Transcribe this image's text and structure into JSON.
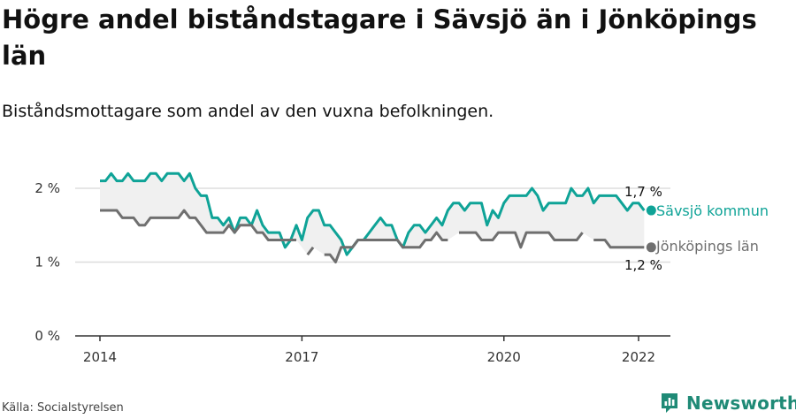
{
  "header": {
    "title": "Högre andel biståndstagare i Sävsjö än i Jönköpings län",
    "subtitle": "Biståndsmottagare som andel av den vuxna befolkningen."
  },
  "footer": {
    "source": "Källa: Socialstyrelsen",
    "brand": "Newsworthy"
  },
  "colors": {
    "savsjo": "#0fa397",
    "lan": "#6f6f6f",
    "band": "#f0f0f0",
    "grid": "#dddddd",
    "brand": "#1f8a76"
  },
  "chart_data": {
    "type": "line",
    "y_ticks": [
      "0 %",
      "1 %",
      "2 %"
    ],
    "x_ticks": [
      "2014",
      "2017",
      "2020",
      "2022"
    ],
    "ylim": [
      0,
      2.2
    ],
    "xlim": [
      2014,
      2022.08
    ],
    "grid": true,
    "x": [
      2014.0,
      2014.083,
      2014.167,
      2014.25,
      2014.333,
      2014.417,
      2014.5,
      2014.583,
      2014.667,
      2014.75,
      2014.833,
      2014.917,
      2015.0,
      2015.083,
      2015.167,
      2015.25,
      2015.333,
      2015.417,
      2015.5,
      2015.583,
      2015.667,
      2015.75,
      2015.833,
      2015.917,
      2016.0,
      2016.083,
      2016.167,
      2016.25,
      2016.333,
      2016.417,
      2016.5,
      2016.583,
      2016.667,
      2016.75,
      2016.833,
      2016.917,
      2017.0,
      2017.083,
      2017.167,
      2017.25,
      2017.333,
      2017.417,
      2017.5,
      2017.583,
      2017.667,
      2017.75,
      2017.833,
      2017.917,
      2018.0,
      2018.083,
      2018.167,
      2018.25,
      2018.333,
      2018.417,
      2018.5,
      2018.583,
      2018.667,
      2018.75,
      2018.833,
      2018.917,
      2019.0,
      2019.083,
      2019.167,
      2019.25,
      2019.333,
      2019.417,
      2019.5,
      2019.583,
      2019.667,
      2019.75,
      2019.833,
      2019.917,
      2020.0,
      2020.083,
      2020.167,
      2020.25,
      2020.333,
      2020.417,
      2020.5,
      2020.583,
      2020.667,
      2020.75,
      2020.833,
      2020.917,
      2021.0,
      2021.083,
      2021.167,
      2021.25,
      2021.333,
      2021.417,
      2021.5,
      2021.583,
      2021.667,
      2021.75,
      2021.833,
      2021.917,
      2022.0,
      2022.083
    ],
    "series": [
      {
        "name": "Sävsjö kommun",
        "end_label": "1,7 %",
        "values": [
          2.1,
          2.1,
          2.2,
          2.1,
          2.1,
          2.2,
          2.1,
          2.1,
          2.1,
          2.2,
          2.2,
          2.1,
          2.2,
          2.2,
          2.2,
          2.1,
          2.2,
          2.0,
          1.9,
          1.9,
          1.6,
          1.6,
          1.5,
          1.6,
          1.4,
          1.6,
          1.6,
          1.5,
          1.7,
          1.5,
          1.4,
          1.4,
          1.4,
          1.2,
          1.3,
          1.5,
          1.3,
          1.6,
          1.7,
          1.7,
          1.5,
          1.5,
          1.4,
          1.3,
          1.1,
          1.2,
          1.3,
          1.3,
          1.4,
          1.5,
          1.6,
          1.5,
          1.5,
          1.3,
          1.2,
          1.4,
          1.5,
          1.5,
          1.4,
          1.5,
          1.6,
          1.5,
          1.7,
          1.8,
          1.8,
          1.7,
          1.8,
          1.8,
          1.8,
          1.5,
          1.7,
          1.6,
          1.8,
          1.9,
          1.9,
          1.9,
          1.9,
          2.0,
          1.9,
          1.7,
          1.8,
          1.8,
          1.8,
          1.8,
          2.0,
          1.9,
          1.9,
          2.0,
          1.8,
          1.9,
          1.9,
          1.9,
          1.9,
          1.8,
          1.7,
          1.8,
          1.8,
          1.7
        ]
      },
      {
        "name": "Jönköpings län",
        "end_label": "1,2 %",
        "values": [
          1.7,
          1.7,
          1.7,
          1.7,
          1.6,
          1.6,
          1.6,
          1.5,
          1.5,
          1.6,
          1.6,
          1.6,
          1.6,
          1.6,
          1.6,
          1.7,
          1.6,
          1.6,
          1.5,
          1.4,
          1.4,
          1.4,
          1.4,
          1.5,
          1.4,
          1.5,
          1.5,
          1.5,
          1.4,
          1.4,
          1.3,
          1.3,
          1.3,
          1.3,
          1.3,
          1.3,
          null,
          1.1,
          1.2,
          null,
          1.1,
          1.1,
          1.0,
          1.2,
          1.2,
          1.2,
          1.3,
          1.3,
          1.3,
          1.3,
          1.3,
          1.3,
          1.3,
          1.3,
          1.2,
          1.2,
          1.2,
          1.2,
          1.3,
          1.3,
          1.4,
          1.3,
          1.3,
          null,
          1.4,
          1.4,
          1.4,
          1.4,
          1.3,
          1.3,
          1.3,
          1.4,
          1.4,
          1.4,
          1.4,
          1.2,
          1.4,
          1.4,
          1.4,
          1.4,
          1.4,
          1.3,
          1.3,
          1.3,
          1.3,
          1.3,
          1.4,
          null,
          1.3,
          1.3,
          1.3,
          1.2,
          1.2,
          1.2,
          1.2,
          1.2,
          1.2,
          1.2
        ]
      }
    ]
  }
}
